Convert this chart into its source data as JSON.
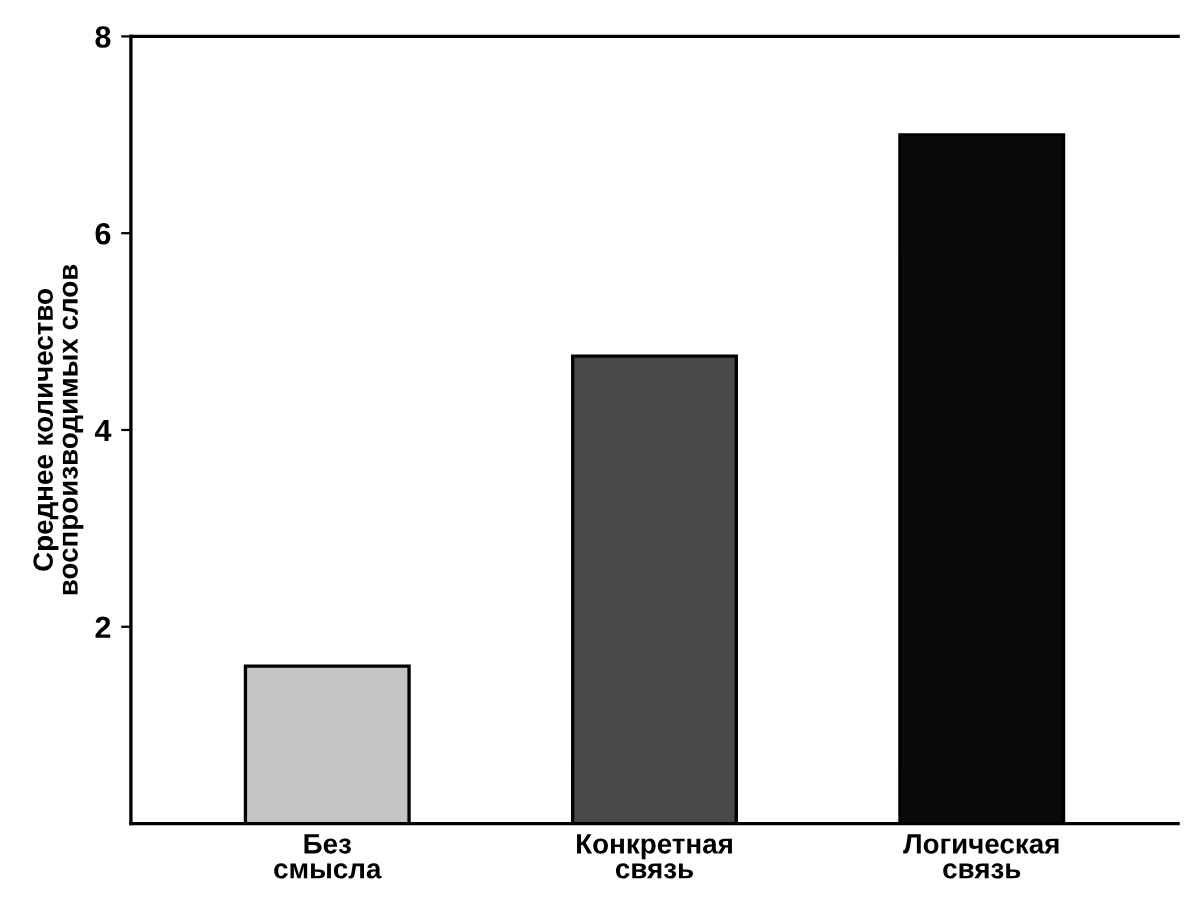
{
  "chart_data": {
    "type": "bar",
    "ylabel": "Среднее количество\nвоспроизводимых слов",
    "categories": [
      "Без\nсмысла",
      "Конкретная\nсвязь",
      "Логическая\nсвязь"
    ],
    "values": [
      1.6,
      4.75,
      7.0
    ],
    "colors": [
      "#c4c4c4",
      "#4a4a4a",
      "#0a0a0a"
    ],
    "ylim": [
      0,
      8
    ],
    "yticks": [
      2,
      4,
      6,
      8
    ],
    "grid": false
  }
}
